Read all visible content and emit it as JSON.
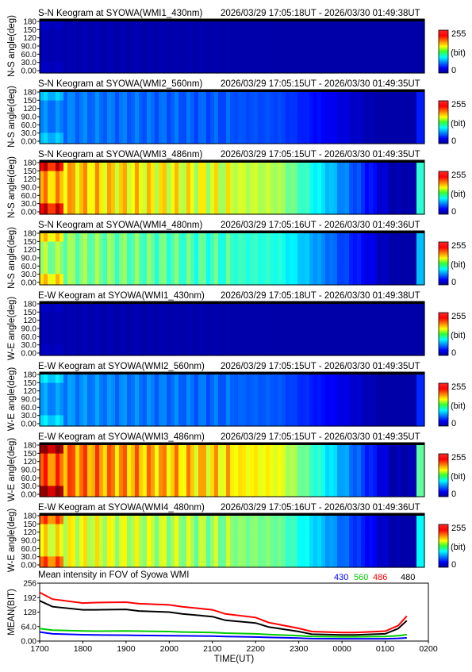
{
  "chart_data": [
    {
      "type": "heatmap",
      "title": "S-N Keogram at SYOWA(WMI1_430nm)",
      "time_range": "2026/03/29 17:05:18UT - 2026/03/30 01:49:38UT",
      "ylabel": "N-S angle(deg)",
      "yticks": [
        "180",
        "150",
        "120",
        "90.0",
        "60.0",
        "30.0",
        "0.00"
      ],
      "colorbar": {
        "max": "255",
        "unit": "(bit)",
        "min": "0"
      },
      "intensity": 0.05
    },
    {
      "type": "heatmap",
      "title": "S-N Keogram at SYOWA(WMI2_560nm)",
      "time_range": "2026/03/29 17:05:15UT - 2026/03/30 01:49:35UT",
      "ylabel": "N-S angle(deg)",
      "yticks": [
        "180",
        "150",
        "120",
        "90.0",
        "60.0",
        "30.0",
        "0.00"
      ],
      "colorbar": {
        "max": "255",
        "unit": "(bit)",
        "min": "0"
      },
      "intensity": 0.25
    },
    {
      "type": "heatmap",
      "title": "S-N Keogram at SYOWA(WMI3_486nm)",
      "time_range": "2026/03/29 17:05:15UT - 2026/03/30 01:49:35UT",
      "ylabel": "N-S angle(deg)",
      "yticks": [
        "180",
        "150",
        "120",
        "90.0",
        "60.0",
        "30.0",
        "0.00"
      ],
      "colorbar": {
        "max": "255",
        "unit": "(bit)",
        "min": "0"
      },
      "intensity": 0.7
    },
    {
      "type": "heatmap",
      "title": "S-N Keogram at SYOWA(WMI4_480nm)",
      "time_range": "2026/03/29 17:05:16UT - 2026/03/30 01:49:36UT",
      "ylabel": "N-S angle(deg)",
      "yticks": [
        "180",
        "150",
        "120",
        "90.0",
        "60.0",
        "30.0",
        "0.00"
      ],
      "colorbar": {
        "max": "255",
        "unit": "(bit)",
        "min": "0"
      },
      "intensity": 0.52
    },
    {
      "type": "heatmap",
      "title": "E-W Keogram at SYOWA(WMI1_430nm)",
      "time_range": "2026/03/29 17:05:18UT - 2026/03/30 01:49:38UT",
      "ylabel": "W-E angle(deg)",
      "yticks": [
        "180",
        "150",
        "120",
        "90.0",
        "60.0",
        "30.0",
        "0.00"
      ],
      "colorbar": {
        "max": "255",
        "unit": "(bit)",
        "min": "0"
      },
      "intensity": 0.05
    },
    {
      "type": "heatmap",
      "title": "E-W Keogram at SYOWA(WMI2_560nm)",
      "time_range": "2026/03/29 17:05:15UT - 2026/03/30 01:49:35UT",
      "ylabel": "W-E angle(deg)",
      "yticks": [
        "180",
        "150",
        "120",
        "90.0",
        "60.0",
        "30.0",
        "0.00"
      ],
      "colorbar": {
        "max": "255",
        "unit": "(bit)",
        "min": "0"
      },
      "intensity": 0.27
    },
    {
      "type": "heatmap",
      "title": "E-W Keogram at SYOWA(WMI3_486nm)",
      "time_range": "2026/03/29 17:05:15UT - 2026/03/30 01:49:35UT",
      "ylabel": "W-E angle(deg)",
      "yticks": [
        "180",
        "150",
        "120",
        "90.0",
        "60.0",
        "30.0",
        "0.00"
      ],
      "colorbar": {
        "max": "255",
        "unit": "(bit)",
        "min": "0"
      },
      "intensity": 0.78
    },
    {
      "type": "heatmap",
      "title": "E-W Keogram at SYOWA(WMI4_480nm)",
      "time_range": "2026/03/29 17:05:16UT - 2026/03/30 01:49:36UT",
      "ylabel": "W-E angle(deg)",
      "yticks": [
        "180",
        "150",
        "120",
        "90.0",
        "60.0",
        "30.0",
        "0.00"
      ],
      "colorbar": {
        "max": "255",
        "unit": "(bit)",
        "min": "0"
      },
      "intensity": 0.62
    },
    {
      "type": "line",
      "title": "Mean intensity in FOV of Syowa WMI",
      "ylabel": "MEAN(BIT)",
      "xlabel": "TIME(UT)",
      "xticks": [
        "1700",
        "1800",
        "1900",
        "2000",
        "2100",
        "2200",
        "2300",
        "0000",
        "0100",
        "0200"
      ],
      "yticks": [
        "256",
        "192",
        "128",
        "64.0",
        "0.00"
      ],
      "ylim": [
        0,
        256
      ],
      "x": [
        1700,
        1730,
        1800,
        1830,
        1900,
        1930,
        2000,
        2030,
        2100,
        2130,
        2200,
        2230,
        2300,
        2330,
        2400,
        2430,
        2500,
        2530,
        2550
      ],
      "series": [
        {
          "name": "430",
          "color": "#0000ff",
          "values": [
            40,
            32,
            28,
            27,
            26,
            25,
            24,
            23,
            22,
            20,
            18,
            16,
            13,
            11,
            10,
            10,
            10,
            12,
            14
          ]
        },
        {
          "name": "560",
          "color": "#00cc00",
          "values": [
            55,
            48,
            45,
            44,
            45,
            44,
            42,
            40,
            38,
            35,
            32,
            29,
            24,
            20,
            19,
            19,
            20,
            24,
            28
          ]
        },
        {
          "name": "486",
          "color": "#ff0000",
          "values": [
            215,
            185,
            168,
            170,
            172,
            165,
            160,
            152,
            138,
            120,
            104,
            82,
            56,
            42,
            38,
            38,
            44,
            68,
            110
          ]
        },
        {
          "name": "480",
          "color": "#000000",
          "values": [
            178,
            152,
            138,
            138,
            140,
            133,
            128,
            120,
            108,
            92,
            80,
            62,
            42,
            30,
            27,
            27,
            32,
            55,
            90
          ]
        }
      ]
    }
  ]
}
